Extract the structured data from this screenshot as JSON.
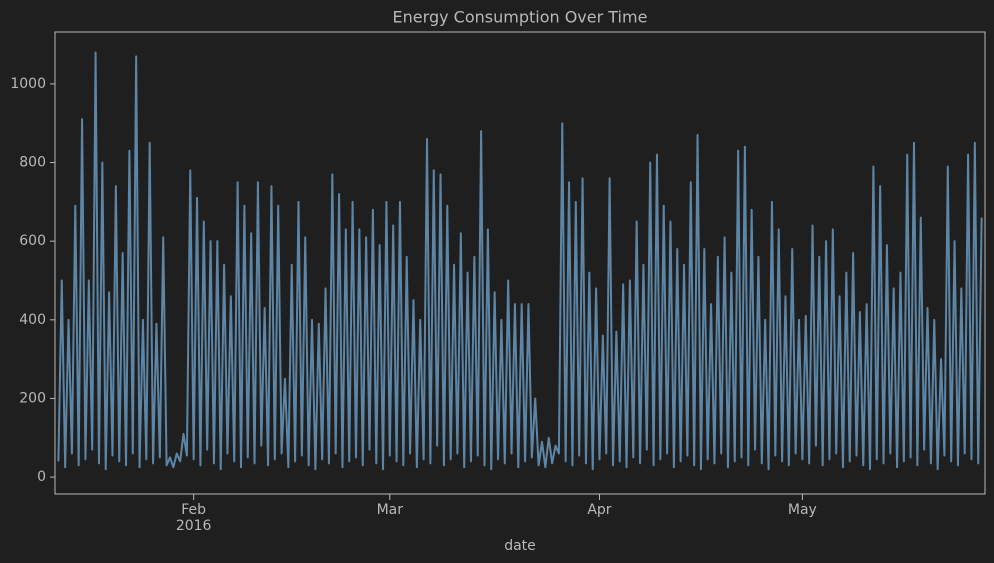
{
  "chart_data": {
    "type": "line",
    "title": "Energy Consumption Over Time",
    "xlabel": "date",
    "year_label": "2016",
    "color": "#5d86a6",
    "xlim": [
      10.5,
      148
    ],
    "ylim": [
      -43,
      1132
    ],
    "xticks": [
      {
        "value": 31,
        "label": "Feb"
      },
      {
        "value": 60,
        "label": "Mar"
      },
      {
        "value": 91,
        "label": "Apr"
      },
      {
        "value": 121,
        "label": "May"
      }
    ],
    "yticks": [
      0,
      200,
      400,
      600,
      800,
      1000
    ],
    "x": [
      11,
      11.5,
      12,
      12.5,
      13,
      13.5,
      14,
      14.5,
      15,
      15.5,
      16,
      16.5,
      17,
      17.5,
      18,
      18.5,
      19,
      19.5,
      20,
      20.5,
      21,
      21.5,
      22,
      22.5,
      23,
      23.5,
      24,
      24.5,
      25,
      25.5,
      26,
      26.5,
      27,
      27.5,
      28,
      28.5,
      29,
      29.5,
      30,
      30.5,
      31,
      31.5,
      32,
      32.5,
      33,
      33.5,
      34,
      34.5,
      35,
      35.5,
      36,
      36.5,
      37,
      37.5,
      38,
      38.5,
      39,
      39.5,
      40,
      40.5,
      41,
      41.5,
      42,
      42.5,
      43,
      43.5,
      44,
      44.5,
      45,
      45.5,
      46,
      46.5,
      47,
      47.5,
      48,
      48.5,
      49,
      49.5,
      50,
      50.5,
      51,
      51.5,
      52,
      52.5,
      53,
      53.5,
      54,
      54.5,
      55,
      55.5,
      56,
      56.5,
      57,
      57.5,
      58,
      58.5,
      59,
      59.5,
      60,
      60.5,
      61,
      61.5,
      62,
      62.5,
      63,
      63.5,
      64,
      64.5,
      65,
      65.5,
      66,
      66.5,
      67,
      67.5,
      68,
      68.5,
      69,
      69.5,
      70,
      70.5,
      71,
      71.5,
      72,
      72.5,
      73,
      73.5,
      74,
      74.5,
      75,
      75.5,
      76,
      76.5,
      77,
      77.5,
      78,
      78.5,
      79,
      79.5,
      80,
      80.5,
      81,
      81.5,
      82,
      82.5,
      83,
      83.5,
      84,
      84.5,
      85,
      85.5,
      86,
      86.5,
      87,
      87.5,
      88,
      88.5,
      89,
      89.5,
      90,
      90.5,
      91,
      91.5,
      92,
      92.5,
      93,
      93.5,
      94,
      94.5,
      95,
      95.5,
      96,
      96.5,
      97,
      97.5,
      98,
      98.5,
      99,
      99.5,
      100,
      100.5,
      101,
      101.5,
      102,
      102.5,
      103,
      103.5,
      104,
      104.5,
      105,
      105.5,
      106,
      106.5,
      107,
      107.5,
      108,
      108.5,
      109,
      109.5,
      110,
      110.5,
      111,
      111.5,
      112,
      112.5,
      113,
      113.5,
      114,
      114.5,
      115,
      115.5,
      116,
      116.5,
      117,
      117.5,
      118,
      118.5,
      119,
      119.5,
      120,
      120.5,
      121,
      121.5,
      122,
      122.5,
      123,
      123.5,
      124,
      124.5,
      125,
      125.5,
      126,
      126.5,
      127,
      127.5,
      128,
      128.5,
      129,
      129.5,
      130,
      130.5,
      131,
      131.5,
      132,
      132.5,
      133,
      133.5,
      134,
      134.5,
      135,
      135.5,
      136,
      136.5,
      137,
      137.5,
      138,
      138.5,
      139,
      139.5,
      140,
      140.5,
      141,
      141.5,
      142,
      142.5,
      143,
      143.5,
      144,
      144.5,
      145,
      145.5,
      146,
      146.5,
      147,
      147.5
    ],
    "values": [
      40,
      500,
      25,
      400,
      60,
      690,
      30,
      910,
      45,
      500,
      70,
      1080,
      35,
      800,
      20,
      470,
      55,
      740,
      40,
      570,
      30,
      830,
      60,
      1070,
      25,
      400,
      45,
      850,
      35,
      390,
      50,
      610,
      30,
      50,
      25,
      60,
      40,
      110,
      55,
      780,
      45,
      710,
      30,
      650,
      70,
      600,
      35,
      600,
      20,
      540,
      60,
      460,
      40,
      750,
      25,
      690,
      50,
      620,
      35,
      750,
      80,
      430,
      30,
      740,
      45,
      690,
      60,
      250,
      25,
      540,
      40,
      700,
      55,
      610,
      30,
      400,
      20,
      390,
      45,
      480,
      35,
      770,
      60,
      720,
      25,
      630,
      40,
      700,
      50,
      630,
      30,
      610,
      70,
      680,
      35,
      590,
      20,
      700,
      55,
      640,
      40,
      700,
      30,
      560,
      60,
      450,
      25,
      400,
      45,
      860,
      35,
      780,
      80,
      770,
      30,
      690,
      45,
      540,
      60,
      620,
      25,
      520,
      40,
      560,
      55,
      880,
      30,
      630,
      20,
      470,
      45,
      400,
      35,
      500,
      60,
      440,
      25,
      440,
      40,
      440,
      50,
      200,
      30,
      90,
      25,
      100,
      35,
      80,
      60,
      900,
      40,
      750,
      30,
      700,
      55,
      760,
      35,
      520,
      20,
      480,
      45,
      360,
      60,
      760,
      30,
      370,
      40,
      490,
      25,
      500,
      50,
      650,
      35,
      540,
      70,
      800,
      30,
      820,
      45,
      690,
      60,
      650,
      25,
      580,
      40,
      540,
      55,
      750,
      30,
      870,
      20,
      580,
      45,
      440,
      35,
      560,
      60,
      610,
      25,
      520,
      40,
      830,
      50,
      840,
      30,
      680,
      70,
      560,
      35,
      400,
      20,
      700,
      55,
      630,
      40,
      460,
      30,
      580,
      60,
      400,
      45,
      410,
      35,
      640,
      80,
      560,
      30,
      600,
      45,
      630,
      60,
      460,
      25,
      520,
      40,
      570,
      55,
      420,
      30,
      440,
      20,
      790,
      45,
      740,
      35,
      590,
      60,
      480,
      25,
      520,
      40,
      820,
      50,
      850,
      30,
      660,
      70,
      430,
      35,
      400,
      20,
      300,
      55,
      790,
      40,
      600,
      30,
      480,
      60,
      820,
      45,
      850,
      35,
      660
    ]
  }
}
